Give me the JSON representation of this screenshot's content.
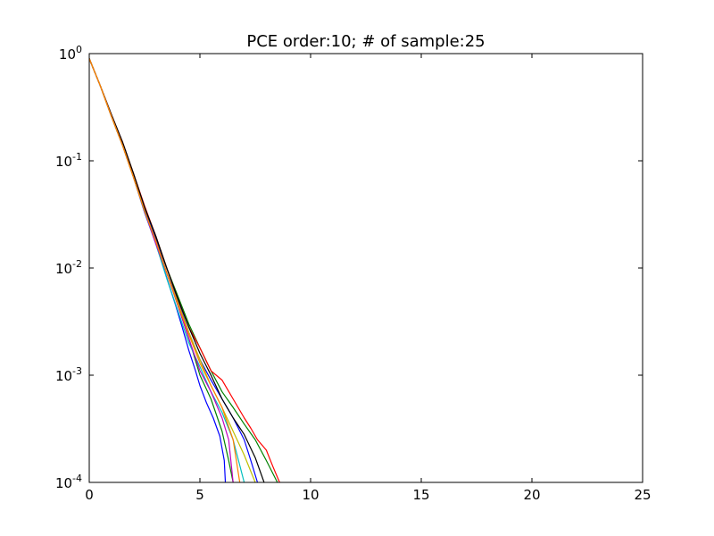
{
  "chart_data": {
    "type": "line",
    "title": "PCE order:10; # of sample:25",
    "xlabel": "",
    "ylabel": "",
    "xlim": [
      0,
      25
    ],
    "ylim": [
      0.0001,
      1
    ],
    "yscale": "log",
    "grid": false,
    "legend": "none",
    "x_ticks": [
      {
        "value": 0,
        "label": "0"
      },
      {
        "value": 5,
        "label": "5"
      },
      {
        "value": 10,
        "label": "10"
      },
      {
        "value": 15,
        "label": "15"
      },
      {
        "value": 20,
        "label": "20"
      },
      {
        "value": 25,
        "label": "25"
      }
    ],
    "y_ticks": [
      {
        "value": 1,
        "base": "10",
        "exp": "0"
      },
      {
        "value": 0.1,
        "base": "10",
        "exp": "-1"
      },
      {
        "value": 0.01,
        "base": "10",
        "exp": "-2"
      },
      {
        "value": 0.001,
        "base": "10",
        "exp": "-3"
      },
      {
        "value": 0.0001,
        "base": "10",
        "exp": "-4"
      }
    ],
    "series": [
      {
        "color": "#0000ff",
        "x": [
          0,
          0.5,
          1.0,
          1.5,
          2.0,
          2.5,
          3.0,
          3.3,
          3.6,
          3.9,
          4.2,
          4.5,
          4.8,
          5.0,
          5.3,
          5.6,
          5.9,
          6.1,
          6.15
        ],
        "y": [
          0.9,
          0.5,
          0.26,
          0.14,
          0.07,
          0.033,
          0.017,
          0.011,
          0.007,
          0.0045,
          0.0028,
          0.0017,
          0.0011,
          0.0008,
          0.00055,
          0.0004,
          0.00027,
          0.00016,
          0.0001
        ]
      },
      {
        "color": "#0000ff",
        "x": [
          0,
          0.5,
          1.0,
          1.5,
          2.0,
          2.5,
          3.0,
          3.5,
          4.0,
          4.5,
          5.0,
          5.5,
          6.0,
          6.5,
          7.0,
          7.3,
          7.6
        ],
        "y": [
          0.9,
          0.5,
          0.27,
          0.15,
          0.075,
          0.036,
          0.019,
          0.009,
          0.005,
          0.0025,
          0.0014,
          0.0009,
          0.0006,
          0.0004,
          0.00025,
          0.00016,
          0.0001
        ]
      },
      {
        "color": "#008000",
        "x": [
          0,
          0.5,
          1.0,
          1.5,
          2.0,
          2.5,
          3.0,
          3.5,
          4.0,
          4.5,
          5.0,
          5.5,
          6.0,
          6.3,
          6.5
        ],
        "y": [
          0.9,
          0.5,
          0.26,
          0.14,
          0.07,
          0.034,
          0.018,
          0.009,
          0.0045,
          0.0022,
          0.001,
          0.0006,
          0.0003,
          0.00016,
          0.0001
        ]
      },
      {
        "color": "#008000",
        "x": [
          0,
          0.5,
          1.0,
          1.5,
          2.0,
          2.5,
          3.0,
          3.5,
          4.0,
          4.5,
          5.0,
          5.5,
          6.0,
          6.5,
          7.0,
          7.5,
          8.0,
          8.5
        ],
        "y": [
          0.9,
          0.5,
          0.27,
          0.15,
          0.076,
          0.037,
          0.02,
          0.01,
          0.0055,
          0.003,
          0.0018,
          0.0011,
          0.0007,
          0.0005,
          0.00035,
          0.00025,
          0.00016,
          0.0001
        ]
      },
      {
        "color": "#ff0000",
        "x": [
          0,
          0.5,
          1.0,
          1.5,
          2.0,
          2.5,
          3.0,
          3.5,
          4.0,
          4.5,
          5.0,
          5.5,
          6.0,
          6.5,
          7.0,
          7.3,
          7.6,
          8.0,
          8.3,
          8.6
        ],
        "y": [
          0.9,
          0.5,
          0.27,
          0.15,
          0.076,
          0.038,
          0.02,
          0.01,
          0.0052,
          0.0028,
          0.0018,
          0.0011,
          0.0009,
          0.0006,
          0.0004,
          0.00032,
          0.00025,
          0.0002,
          0.00014,
          0.0001
        ]
      },
      {
        "color": "#000000",
        "x": [
          0,
          0.5,
          1.0,
          1.5,
          2.0,
          2.5,
          3.0,
          3.5,
          4.0,
          4.5,
          5.0,
          5.5,
          6.0,
          6.5,
          7.0,
          7.5,
          7.9
        ],
        "y": [
          0.9,
          0.5,
          0.27,
          0.15,
          0.076,
          0.037,
          0.02,
          0.01,
          0.0052,
          0.0028,
          0.0016,
          0.001,
          0.0006,
          0.0004,
          0.00028,
          0.00017,
          0.0001
        ]
      },
      {
        "color": "#00bfbf",
        "x": [
          0,
          0.5,
          1.0,
          1.5,
          2.0,
          2.5,
          3.0,
          3.5,
          4.0,
          4.5,
          5.0,
          5.5,
          6.0,
          6.5,
          7.0
        ],
        "y": [
          0.9,
          0.5,
          0.26,
          0.14,
          0.07,
          0.034,
          0.017,
          0.008,
          0.004,
          0.002,
          0.0012,
          0.0007,
          0.00045,
          0.00025,
          0.0001
        ]
      },
      {
        "color": "#bf00bf",
        "x": [
          0,
          0.5,
          1.0,
          1.5,
          2.0,
          2.5,
          3.0,
          3.5,
          4.0,
          4.5,
          5.0,
          5.5,
          6.0,
          6.3,
          6.5
        ],
        "y": [
          0.9,
          0.5,
          0.26,
          0.14,
          0.07,
          0.034,
          0.017,
          0.009,
          0.0045,
          0.0022,
          0.0011,
          0.0007,
          0.0004,
          0.00025,
          0.0001
        ]
      },
      {
        "color": "#bfbf00",
        "x": [
          0,
          0.5,
          1.0,
          1.5,
          2.0,
          2.5,
          3.0,
          3.5,
          4.0,
          4.5,
          5.0,
          5.5,
          6.0,
          6.5,
          7.0,
          7.5
        ],
        "y": [
          0.9,
          0.5,
          0.26,
          0.14,
          0.07,
          0.034,
          0.018,
          0.009,
          0.0048,
          0.0025,
          0.0014,
          0.0008,
          0.0005,
          0.0003,
          0.00018,
          0.0001
        ]
      },
      {
        "color": "#ff8000",
        "x": [
          0,
          0.5,
          1.0,
          1.5,
          2.0,
          2.5,
          3.0,
          3.5,
          4.0,
          4.5,
          5.0,
          5.5,
          6.0,
          6.5,
          6.8
        ],
        "y": [
          0.9,
          0.5,
          0.26,
          0.14,
          0.07,
          0.034,
          0.018,
          0.009,
          0.0046,
          0.0024,
          0.0013,
          0.0008,
          0.0005,
          0.00025,
          0.0001
        ]
      }
    ]
  }
}
